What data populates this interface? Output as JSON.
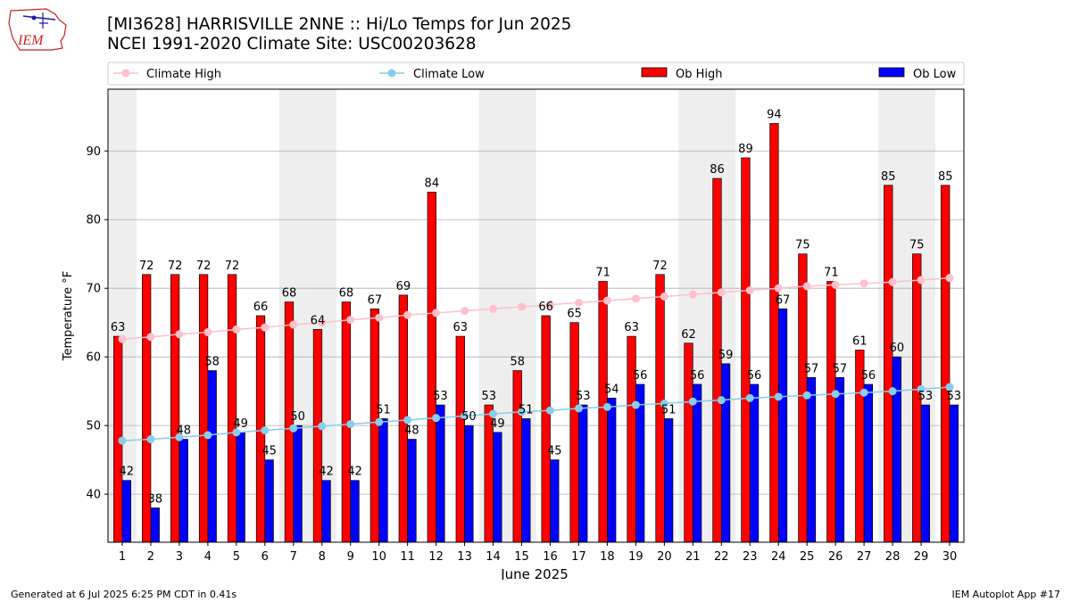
{
  "header": {
    "logo_text": "IEM",
    "title_line1": "[MI3628] HARRISVILLE 2NNE :: Hi/Lo Temps for Jun 2025",
    "title_line2": "NCEI 1991-2020 Climate Site: USC00203628"
  },
  "footer": {
    "generated": "Generated at 6 Jul 2025 6:25 PM CDT in 0.41s",
    "app": "IEM Autoplot App #17"
  },
  "colors": {
    "climate_high": "#ffc0cb",
    "climate_low": "#87ceeb",
    "ob_high": "#ff0000",
    "ob_low": "#0000ff",
    "weekend_shade": "#eeeeee",
    "grid": "#b0b0b0"
  },
  "chart_data": {
    "type": "bar",
    "xlabel": "June 2025",
    "ylabel": "Temperature °F",
    "ylim": [
      33,
      99
    ],
    "yticks": [
      40,
      50,
      60,
      70,
      80,
      90
    ],
    "grid": "horizontal",
    "legend_position": "top",
    "categories": [
      "1",
      "2",
      "3",
      "4",
      "5",
      "6",
      "7",
      "8",
      "9",
      "10",
      "11",
      "12",
      "13",
      "14",
      "15",
      "16",
      "17",
      "18",
      "19",
      "20",
      "21",
      "22",
      "23",
      "24",
      "25",
      "26",
      "27",
      "28",
      "29",
      "30"
    ],
    "shaded_days": [
      1,
      7,
      8,
      14,
      15,
      21,
      22,
      28,
      29
    ],
    "series": [
      {
        "name": "Ob High",
        "type": "bar",
        "values": [
          63,
          72,
          72,
          72,
          72,
          66,
          68,
          64,
          68,
          67,
          69,
          84,
          63,
          53,
          58,
          66,
          65,
          71,
          63,
          72,
          62,
          86,
          89,
          94,
          75,
          71,
          61,
          85,
          75,
          85
        ]
      },
      {
        "name": "Ob Low",
        "type": "bar",
        "values": [
          42,
          38,
          48,
          58,
          49,
          45,
          50,
          42,
          42,
          51,
          48,
          53,
          50,
          49,
          51,
          45,
          53,
          54,
          56,
          51,
          56,
          59,
          56,
          67,
          57,
          57,
          56,
          60,
          53,
          53
        ]
      },
      {
        "name": "Climate High",
        "type": "line",
        "values": [
          62.6,
          62.9,
          63.3,
          63.6,
          64.0,
          64.3,
          64.7,
          65.0,
          65.4,
          65.7,
          66.1,
          66.4,
          66.7,
          67.0,
          67.3,
          67.6,
          67.9,
          68.2,
          68.5,
          68.8,
          69.1,
          69.4,
          69.7,
          70.0,
          70.3,
          70.5,
          70.7,
          70.9,
          71.2,
          71.5
        ]
      },
      {
        "name": "Climate Low",
        "type": "line",
        "values": [
          47.8,
          48.0,
          48.3,
          48.6,
          49.0,
          49.3,
          49.6,
          49.9,
          50.2,
          50.5,
          50.8,
          51.1,
          51.4,
          51.7,
          52.0,
          52.2,
          52.5,
          52.7,
          53.0,
          53.2,
          53.5,
          53.7,
          54.0,
          54.2,
          54.4,
          54.6,
          54.8,
          55.0,
          55.3,
          55.6
        ]
      }
    ]
  }
}
